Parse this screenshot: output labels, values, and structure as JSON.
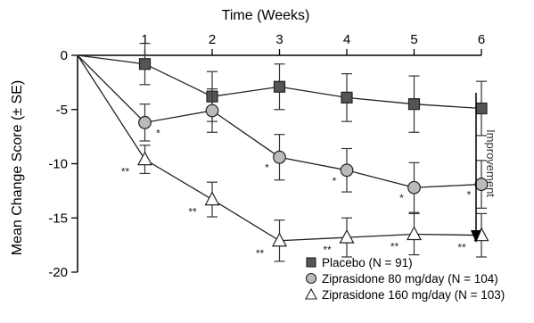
{
  "chart_data": {
    "type": "line",
    "xlabel": "Time (Weeks)",
    "ylabel": "Mean Change Score (± SE)",
    "x_ticks": [
      "1",
      "2",
      "3",
      "4",
      "5",
      "6"
    ],
    "x": [
      0,
      1,
      2,
      3,
      4,
      5,
      6
    ],
    "xlim": [
      0,
      6
    ],
    "ylim": [
      -20,
      0
    ],
    "y_ticks": [
      0,
      -5,
      -10,
      -15,
      -20
    ],
    "y_tick_labels": [
      "0",
      "-5",
      "-10",
      "-15",
      "-20"
    ],
    "grid": false,
    "annotation": "Improvement",
    "legend_position": "bottom-right",
    "series": [
      {
        "name": "Placebo (N = 91)",
        "marker": "square",
        "fill": "#555555",
        "values": [
          0,
          -0.8,
          -3.8,
          -2.9,
          -3.9,
          -4.5,
          -4.9
        ],
        "se": [
          null,
          1.9,
          2.3,
          2.1,
          2.2,
          2.6,
          2.5
        ],
        "sig": [
          "",
          "",
          "",
          "",
          "",
          "",
          ""
        ]
      },
      {
        "name": "Ziprasidone 80 mg/day (N = 104)",
        "marker": "circle",
        "fill": "#bbbbbb",
        "values": [
          0,
          -6.2,
          -5.1,
          -9.4,
          -10.6,
          -12.2,
          -11.9
        ],
        "se": [
          null,
          1.7,
          2.0,
          2.1,
          2.0,
          2.3,
          2.2
        ],
        "sig": [
          "",
          "*",
          "",
          "*",
          "*",
          "*",
          "*"
        ]
      },
      {
        "name": "Ziprasidone 160 mg/day (N = 103)",
        "marker": "triangle",
        "fill": "#ffffff",
        "values": [
          0,
          -9.6,
          -13.3,
          -17.1,
          -16.8,
          -16.5,
          -16.6
        ],
        "se": [
          null,
          1.3,
          1.6,
          1.9,
          1.8,
          1.9,
          2.0
        ],
        "sig": [
          "",
          "**",
          "**",
          "**",
          "**",
          "**",
          "**"
        ]
      }
    ]
  }
}
